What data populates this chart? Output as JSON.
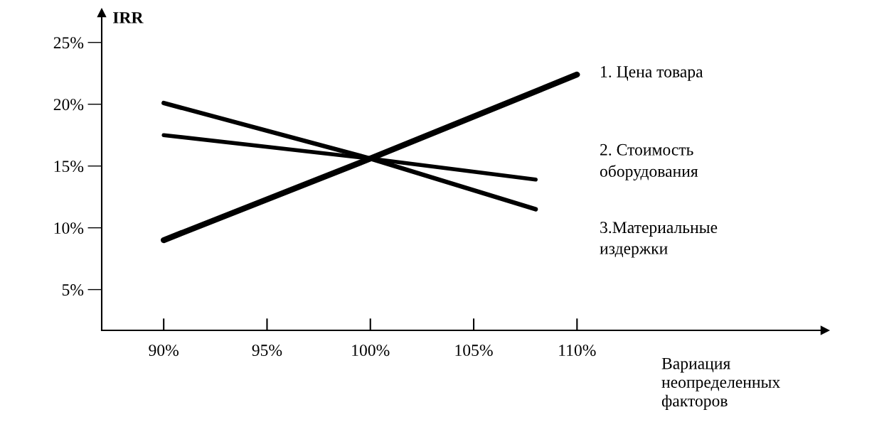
{
  "chart_data": {
    "type": "line",
    "ylabel": "IRR",
    "xlabel": "Вариация\nнеопределенных\nфакторов",
    "xlim": [
      87,
      122
    ],
    "ylim": [
      1.7,
      27.4
    ],
    "xticks": [
      {
        "value": 90,
        "label": "90%"
      },
      {
        "value": 95,
        "label": "95%"
      },
      {
        "value": 100,
        "label": "100%"
      },
      {
        "value": 105,
        "label": "105%"
      },
      {
        "value": 110,
        "label": "110%"
      }
    ],
    "yticks": [
      {
        "value": 5,
        "label": "5%"
      },
      {
        "value": 10,
        "label": "10%"
      },
      {
        "value": 15,
        "label": "15%"
      },
      {
        "value": 20,
        "label": "20%"
      },
      {
        "value": 25,
        "label": "25%"
      }
    ],
    "grid": false,
    "legend": false,
    "marker": "none",
    "line_style": "solid",
    "series": [
      {
        "name": "1. Цена товара",
        "color": "#000000",
        "x": [
          90,
          100,
          110
        ],
        "values": [
          9.0,
          15.6,
          22.4
        ]
      },
      {
        "name": "2. Стоимость\nоборудования",
        "color": "#000000",
        "x": [
          90,
          100,
          108
        ],
        "values": [
          17.5,
          15.6,
          13.9
        ]
      },
      {
        "name": "3.Материальные\nиздержки",
        "color": "#000000",
        "x": [
          90,
          100,
          108
        ],
        "values": [
          20.1,
          15.6,
          11.5
        ]
      }
    ]
  }
}
